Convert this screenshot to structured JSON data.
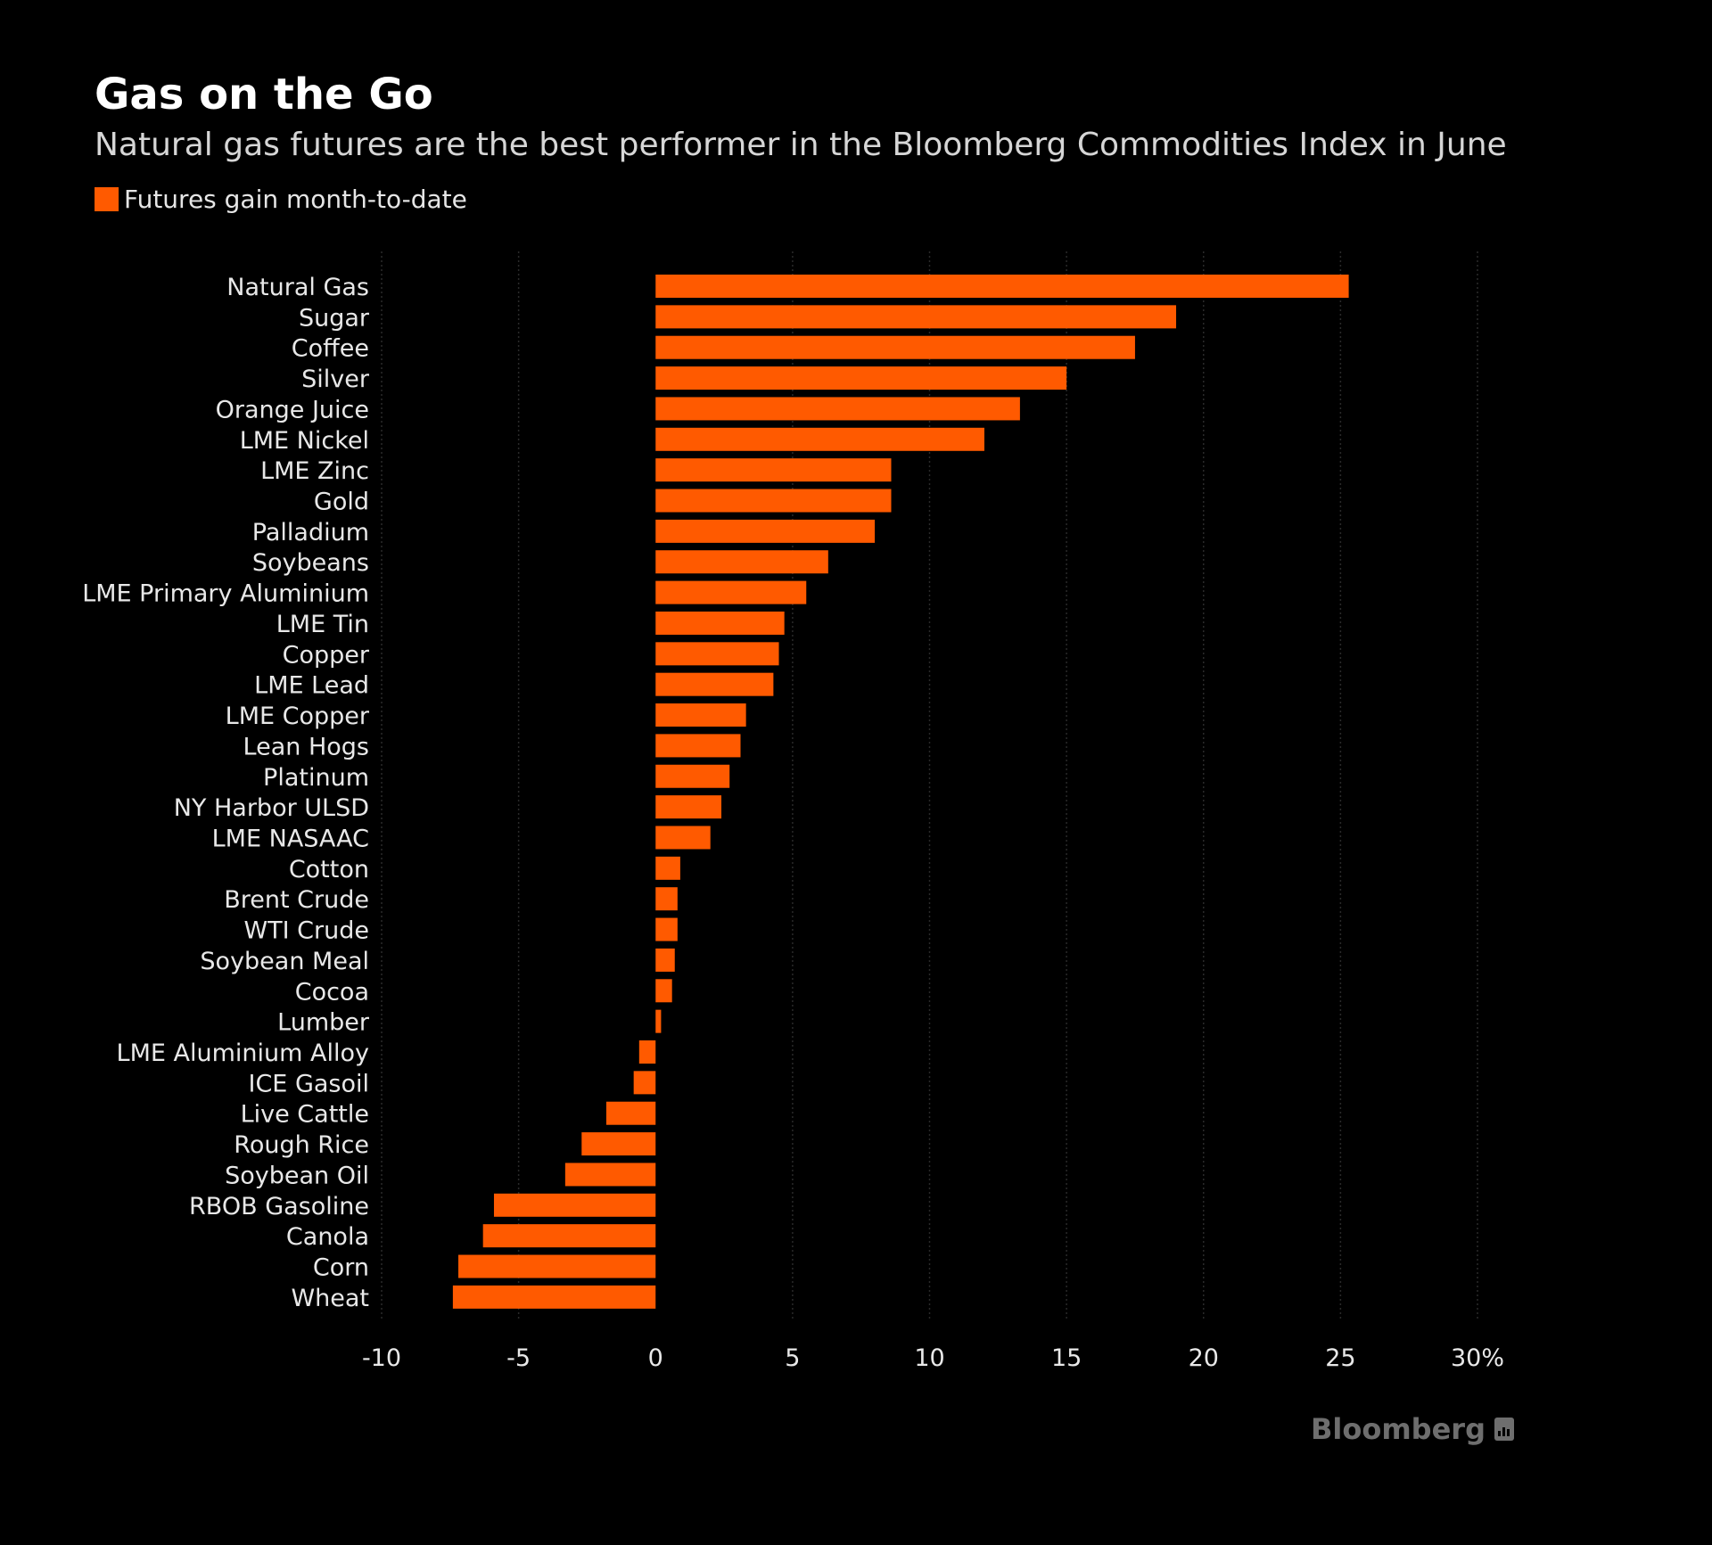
{
  "header": {
    "title": "Gas on the Go",
    "subtitle": "Natural gas futures are the best performer in the Bloomberg Commodities Index in June"
  },
  "legend": {
    "label": "Futures gain month-to-date",
    "color": "#ff5a00"
  },
  "footer": {
    "brand": "Bloomberg",
    "brand_icon": "bloomberg-terminal-icon"
  },
  "colors": {
    "bar": "#ff5a00",
    "background": "#000000",
    "grid": "#2a2a2a",
    "text": "#e8e8e8"
  },
  "chart_data": {
    "type": "bar",
    "orientation": "horizontal",
    "title": "Gas on the Go",
    "subtitle": "Natural gas futures are the best performer in the Bloomberg Commodities Index in June",
    "xlabel": "",
    "ylabel": "",
    "xlim": [
      -10,
      30
    ],
    "x_ticks": [
      -10,
      -5,
      0,
      5,
      10,
      15,
      20,
      25,
      30
    ],
    "x_tick_labels": [
      "-10",
      "-5",
      "0",
      "5",
      "10",
      "15",
      "20",
      "25",
      "30%"
    ],
    "grid": "vertical-dotted",
    "legend_position": "top-left",
    "categories": [
      "Natural Gas",
      "Sugar",
      "Coffee",
      "Silver",
      "Orange Juice",
      "LME Nickel",
      "LME Zinc",
      "Gold",
      "Palladium",
      "Soybeans",
      "LME Primary Aluminium",
      "LME Tin",
      "Copper",
      "LME Lead",
      "LME Copper",
      "Lean Hogs",
      "Platinum",
      "NY Harbor ULSD",
      "LME NASAAC",
      "Cotton",
      "Brent Crude",
      "WTI Crude",
      "Soybean Meal",
      "Cocoa",
      "Lumber",
      "LME Aluminium Alloy",
      "ICE Gasoil",
      "Live Cattle",
      "Rough Rice",
      "Soybean Oil",
      "RBOB Gasoline",
      "Canola",
      "Corn",
      "Wheat"
    ],
    "series": [
      {
        "name": "Futures gain month-to-date",
        "values": [
          25.3,
          19.0,
          17.5,
          15.0,
          13.3,
          12.0,
          8.6,
          8.6,
          8.0,
          6.3,
          5.5,
          4.7,
          4.5,
          4.3,
          3.3,
          3.1,
          2.7,
          2.4,
          2.0,
          0.9,
          0.8,
          0.8,
          0.7,
          0.6,
          0.2,
          -0.6,
          -0.8,
          -1.8,
          -2.7,
          -3.3,
          -5.9,
          -6.3,
          -7.2,
          -7.4
        ]
      }
    ]
  }
}
